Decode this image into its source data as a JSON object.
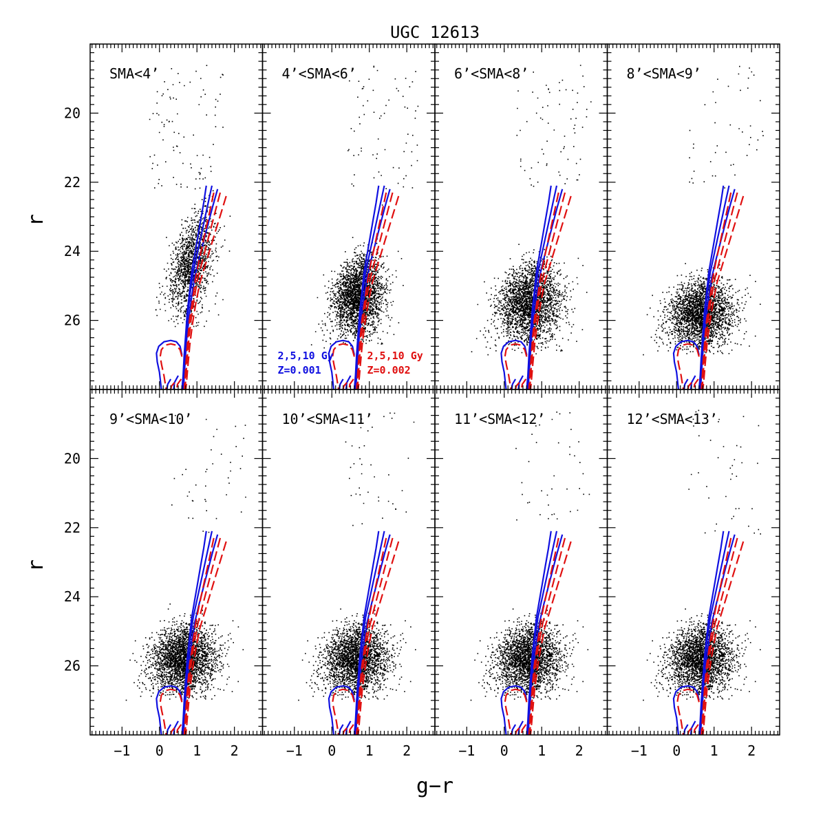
{
  "chart_data": {
    "type": "scatter",
    "title": "UGC 12613",
    "xlabel": "g−r",
    "ylabel": "r",
    "xlim": [
      -1.85,
      2.75
    ],
    "ylim": [
      28.0,
      18.0
    ],
    "y_inverted": true,
    "x_ticks": [
      -1,
      0,
      1,
      2
    ],
    "x_tick_labels": [
      "−1",
      "0",
      "1",
      "2"
    ],
    "y_ticks": [
      20,
      22,
      24,
      26
    ],
    "y_tick_labels": [
      "20",
      "22",
      "24",
      "26"
    ],
    "grid": false,
    "colors": {
      "points": "#000000",
      "isochrone_z0001": "#1010e0",
      "isochrone_z0002": "#e01010"
    },
    "legend": [
      {
        "lines": [
          "2,5,10 Gy",
          "Z=0.001"
        ],
        "color": "#1010e0",
        "style": "solid",
        "panel": 1,
        "position": "bottom-left"
      },
      {
        "lines": [
          "2,5,10 Gy",
          "Z=0.002"
        ],
        "color": "#e01010",
        "style": "dashed",
        "panel": 1,
        "position": "bottom-right"
      }
    ],
    "panels": [
      {
        "label": "SMA<4’",
        "n_points": 1400,
        "center_color": 0.85,
        "color_spread": 0.3,
        "mag_mean": 24.4,
        "mag_spread": 1.3,
        "mag_faint_limit": 26.2,
        "rgb_tip": 22.0,
        "bright_sparse": 90
      },
      {
        "label": "4’<SMA<6’",
        "n_points": 5200,
        "center_color": 0.75,
        "color_spread": 0.32,
        "mag_mean": 25.3,
        "mag_spread": 1.0,
        "mag_faint_limit": 26.8,
        "rgb_tip": 22.0,
        "bright_sparse": 70
      },
      {
        "label": "6’<SMA<8’",
        "n_points": 6500,
        "center_color": 0.65,
        "color_spread": 0.4,
        "mag_mean": 25.5,
        "mag_spread": 1.0,
        "mag_faint_limit": 27.0,
        "rgb_tip": 22.0,
        "bright_sparse": 70
      },
      {
        "label": "8’<SMA<9’",
        "n_points": 3000,
        "center_color": 0.55,
        "color_spread": 0.4,
        "mag_mean": 25.8,
        "mag_spread": 0.85,
        "mag_faint_limit": 27.0,
        "rgb_tip": 22.2,
        "bright_sparse": 45
      },
      {
        "label": "9’<SMA<10’",
        "n_points": 2800,
        "center_color": 0.55,
        "color_spread": 0.4,
        "mag_mean": 25.8,
        "mag_spread": 0.85,
        "mag_faint_limit": 27.0,
        "rgb_tip": 22.5,
        "bright_sparse": 40
      },
      {
        "label": "10’<SMA<11’",
        "n_points": 2800,
        "center_color": 0.55,
        "color_spread": 0.4,
        "mag_mean": 25.8,
        "mag_spread": 0.85,
        "mag_faint_limit": 27.0,
        "rgb_tip": 22.5,
        "bright_sparse": 40
      },
      {
        "label": "11’<SMA<12’",
        "n_points": 2800,
        "center_color": 0.55,
        "color_spread": 0.4,
        "mag_mean": 25.8,
        "mag_spread": 0.85,
        "mag_faint_limit": 27.0,
        "rgb_tip": 22.5,
        "bright_sparse": 40
      },
      {
        "label": "12’<SMA<13’",
        "n_points": 2800,
        "center_color": 0.55,
        "color_spread": 0.4,
        "mag_mean": 25.8,
        "mag_spread": 0.85,
        "mag_faint_limit": 27.0,
        "rgb_tip": 22.5,
        "bright_sparse": 40
      }
    ],
    "isochrones": [
      {
        "set": "Z=0.001",
        "age_gyr": 2,
        "color": "#1010e0",
        "style": "solid",
        "points": [
          [
            1.25,
            22.1
          ],
          [
            1.18,
            22.6
          ],
          [
            1.1,
            23.1
          ],
          [
            1.02,
            23.6
          ],
          [
            0.94,
            24.1
          ],
          [
            0.86,
            24.6
          ],
          [
            0.8,
            25.2
          ],
          [
            0.74,
            25.8
          ],
          [
            0.7,
            26.4
          ],
          [
            0.66,
            27.0
          ],
          [
            0.63,
            27.6
          ],
          [
            0.6,
            28.0
          ]
        ]
      },
      {
        "set": "Z=0.001",
        "age_gyr": 5,
        "color": "#1010e0",
        "style": "solid",
        "points": [
          [
            1.4,
            22.1
          ],
          [
            1.3,
            22.6
          ],
          [
            1.2,
            23.1
          ],
          [
            1.1,
            23.6
          ],
          [
            1.0,
            24.1
          ],
          [
            0.9,
            24.6
          ],
          [
            0.82,
            25.2
          ],
          [
            0.76,
            25.8
          ],
          [
            0.71,
            26.4
          ],
          [
            0.67,
            27.0
          ],
          [
            0.64,
            27.6
          ],
          [
            0.62,
            28.0
          ]
        ]
      },
      {
        "set": "Z=0.001",
        "age_gyr": 10,
        "color": "#1010e0",
        "style": "solid",
        "points": [
          [
            1.55,
            22.2
          ],
          [
            1.42,
            22.7
          ],
          [
            1.3,
            23.2
          ],
          [
            1.18,
            23.7
          ],
          [
            1.06,
            24.2
          ],
          [
            0.95,
            24.7
          ],
          [
            0.86,
            25.3
          ],
          [
            0.79,
            25.9
          ],
          [
            0.73,
            26.5
          ],
          [
            0.69,
            27.1
          ],
          [
            0.66,
            27.6
          ],
          [
            0.64,
            28.0
          ]
        ]
      },
      {
        "set": "Z=0.002",
        "age_gyr": 2,
        "color": "#e01010",
        "style": "dashed",
        "points": [
          [
            1.45,
            22.3
          ],
          [
            1.35,
            22.8
          ],
          [
            1.25,
            23.3
          ],
          [
            1.15,
            23.8
          ],
          [
            1.05,
            24.3
          ],
          [
            0.96,
            24.8
          ],
          [
            0.88,
            25.4
          ],
          [
            0.8,
            26.0
          ],
          [
            0.75,
            26.6
          ],
          [
            0.71,
            27.2
          ],
          [
            0.68,
            27.7
          ],
          [
            0.66,
            28.0
          ]
        ]
      },
      {
        "set": "Z=0.002",
        "age_gyr": 5,
        "color": "#e01010",
        "style": "dashed",
        "points": [
          [
            1.62,
            22.3
          ],
          [
            1.5,
            22.8
          ],
          [
            1.38,
            23.3
          ],
          [
            1.26,
            23.8
          ],
          [
            1.14,
            24.3
          ],
          [
            1.02,
            24.8
          ],
          [
            0.92,
            25.4
          ],
          [
            0.84,
            26.0
          ],
          [
            0.78,
            26.6
          ],
          [
            0.73,
            27.2
          ],
          [
            0.7,
            27.7
          ],
          [
            0.68,
            28.0
          ]
        ]
      },
      {
        "set": "Z=0.002",
        "age_gyr": 10,
        "color": "#e01010",
        "style": "dashed",
        "points": [
          [
            1.78,
            22.4
          ],
          [
            1.64,
            22.9
          ],
          [
            1.5,
            23.4
          ],
          [
            1.36,
            23.9
          ],
          [
            1.22,
            24.4
          ],
          [
            1.08,
            24.9
          ],
          [
            0.97,
            25.5
          ],
          [
            0.88,
            26.1
          ],
          [
            0.81,
            26.7
          ],
          [
            0.76,
            27.3
          ],
          [
            0.72,
            27.8
          ],
          [
            0.7,
            28.0
          ]
        ]
      }
    ],
    "horizontal_branch": [
      {
        "color": "#1010e0",
        "style": "solid",
        "points": [
          [
            0.6,
            27.0
          ],
          [
            0.55,
            26.75
          ],
          [
            0.45,
            26.62
          ],
          [
            0.3,
            26.58
          ],
          [
            0.12,
            26.62
          ],
          [
            -0.02,
            26.75
          ],
          [
            -0.08,
            26.95
          ],
          [
            -0.06,
            27.2
          ],
          [
            0.0,
            27.5
          ],
          [
            0.05,
            28.0
          ]
        ]
      },
      {
        "color": "#e01010",
        "style": "dashed",
        "points": [
          [
            0.6,
            27.05
          ],
          [
            0.55,
            26.85
          ],
          [
            0.45,
            26.72
          ],
          [
            0.3,
            26.68
          ],
          [
            0.15,
            26.72
          ],
          [
            0.05,
            26.85
          ],
          [
            0.02,
            27.05
          ],
          [
            0.06,
            27.3
          ],
          [
            0.12,
            27.6
          ],
          [
            0.18,
            28.0
          ]
        ]
      }
    ],
    "main_sequence_hooks": [
      {
        "color": "#1010e0",
        "style": "solid",
        "points": [
          [
            0.5,
            27.6
          ],
          [
            0.4,
            27.8
          ],
          [
            0.38,
            28.0
          ]
        ]
      },
      {
        "color": "#1010e0",
        "style": "solid",
        "points": [
          [
            0.3,
            27.7
          ],
          [
            0.22,
            27.85
          ],
          [
            0.2,
            28.0
          ]
        ]
      },
      {
        "color": "#e01010",
        "style": "dashed",
        "points": [
          [
            0.58,
            27.7
          ],
          [
            0.48,
            27.85
          ],
          [
            0.46,
            28.0
          ]
        ]
      },
      {
        "color": "#e01010",
        "style": "dashed",
        "points": [
          [
            0.4,
            27.8
          ],
          [
            0.32,
            27.9
          ],
          [
            0.3,
            28.0
          ]
        ]
      }
    ]
  }
}
